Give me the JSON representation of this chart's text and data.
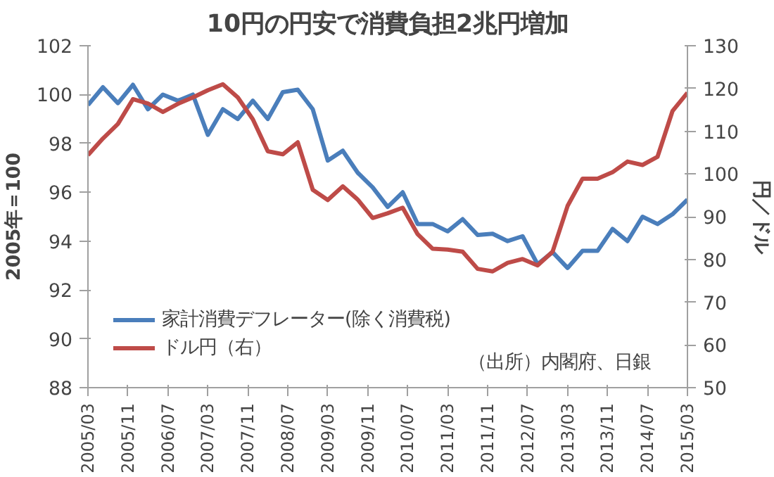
{
  "chart_data": {
    "type": "line",
    "title": "10円の円安で消費負担2兆円増加",
    "ylabel": "2005年＝100",
    "y2label": "円／ドル",
    "x": [
      "2005-03",
      "2005-06",
      "2005-09",
      "2005-12",
      "2006-03",
      "2006-06",
      "2006-09",
      "2006-12",
      "2007-03",
      "2007-06",
      "2007-09",
      "2007-12",
      "2008-03",
      "2008-06",
      "2008-09",
      "2008-12",
      "2009-03",
      "2009-06",
      "2009-09",
      "2009-12",
      "2010-03",
      "2010-06",
      "2010-09",
      "2010-12",
      "2011-03",
      "2011-06",
      "2011-09",
      "2011-12",
      "2012-03",
      "2012-06",
      "2012-09",
      "2012-12",
      "2013-03",
      "2013-06",
      "2013-09",
      "2013-12",
      "2014-03",
      "2014-06",
      "2014-09",
      "2014-12",
      "2015-03"
    ],
    "series": [
      {
        "name": "家計消費デフレーター(除く消費税)",
        "color": "#4a7ebb",
        "values": [
          99.57,
          100.3,
          99.65,
          100.4,
          99.4,
          100.0,
          99.75,
          100.0,
          98.35,
          99.4,
          99.0,
          99.75,
          99.0,
          100.1,
          100.2,
          99.4,
          97.3,
          97.7,
          96.8,
          96.2,
          95.4,
          96.0,
          94.7,
          94.7,
          94.4,
          94.9,
          94.25,
          94.3,
          94.0,
          94.2,
          93.05,
          93.55,
          92.9,
          93.6,
          93.6,
          94.5,
          94.0,
          95.0,
          94.7,
          95.1,
          95.7
        ]
      },
      {
        "name": "ドル円（右）",
        "color": "#be4b48",
        "axis": "y2",
        "values": [
          104.4,
          108.3,
          111.7,
          117.5,
          116.5,
          114.5,
          116.4,
          117.9,
          119.6,
          121.0,
          117.9,
          112.8,
          105.3,
          104.6,
          107.4,
          96.3,
          93.9,
          97.1,
          94.0,
          89.7,
          90.8,
          92.1,
          85.9,
          82.5,
          82.3,
          81.8,
          77.8,
          77.2,
          79.2,
          80.1,
          78.6,
          81.8,
          92.5,
          98.9,
          98.9,
          100.4,
          102.9,
          102.1,
          104.0,
          114.7,
          119.0
        ]
      }
    ],
    "xlim": [
      "2005-03",
      "2015-03"
    ],
    "xticks": [
      {
        "value": "2005-03",
        "label": "2005/03"
      },
      {
        "value": "2005-11",
        "label": "2005/11"
      },
      {
        "value": "2006-07",
        "label": "2006/07"
      },
      {
        "value": "2007-03",
        "label": "2007/03"
      },
      {
        "value": "2007-11",
        "label": "2007/11"
      },
      {
        "value": "2008-07",
        "label": "2008/07"
      },
      {
        "value": "2009-03",
        "label": "2009/03"
      },
      {
        "value": "2009-11",
        "label": "2009/11"
      },
      {
        "value": "2010-07",
        "label": "2010/07"
      },
      {
        "value": "2011-03",
        "label": "2011/03"
      },
      {
        "value": "2011-11",
        "label": "2011/11"
      },
      {
        "value": "2012-07",
        "label": "2012/07"
      },
      {
        "value": "2013-03",
        "label": "2013/03"
      },
      {
        "value": "2013-11",
        "label": "2013/11"
      },
      {
        "value": "2014-07",
        "label": "2014/07"
      },
      {
        "value": "2015-03",
        "label": "2015/03"
      }
    ],
    "ylim": [
      88,
      102
    ],
    "yticks": [
      88,
      90,
      92,
      94,
      96,
      98,
      100,
      102
    ],
    "y2lim": [
      50,
      130
    ],
    "y2ticks": [
      50,
      60,
      70,
      80,
      90,
      100,
      110,
      120,
      130
    ],
    "annotations": [
      "（出所）内閣府、日銀"
    ],
    "legend": "bottom left",
    "grid": false,
    "marker": "none",
    "line_style": "solid"
  }
}
